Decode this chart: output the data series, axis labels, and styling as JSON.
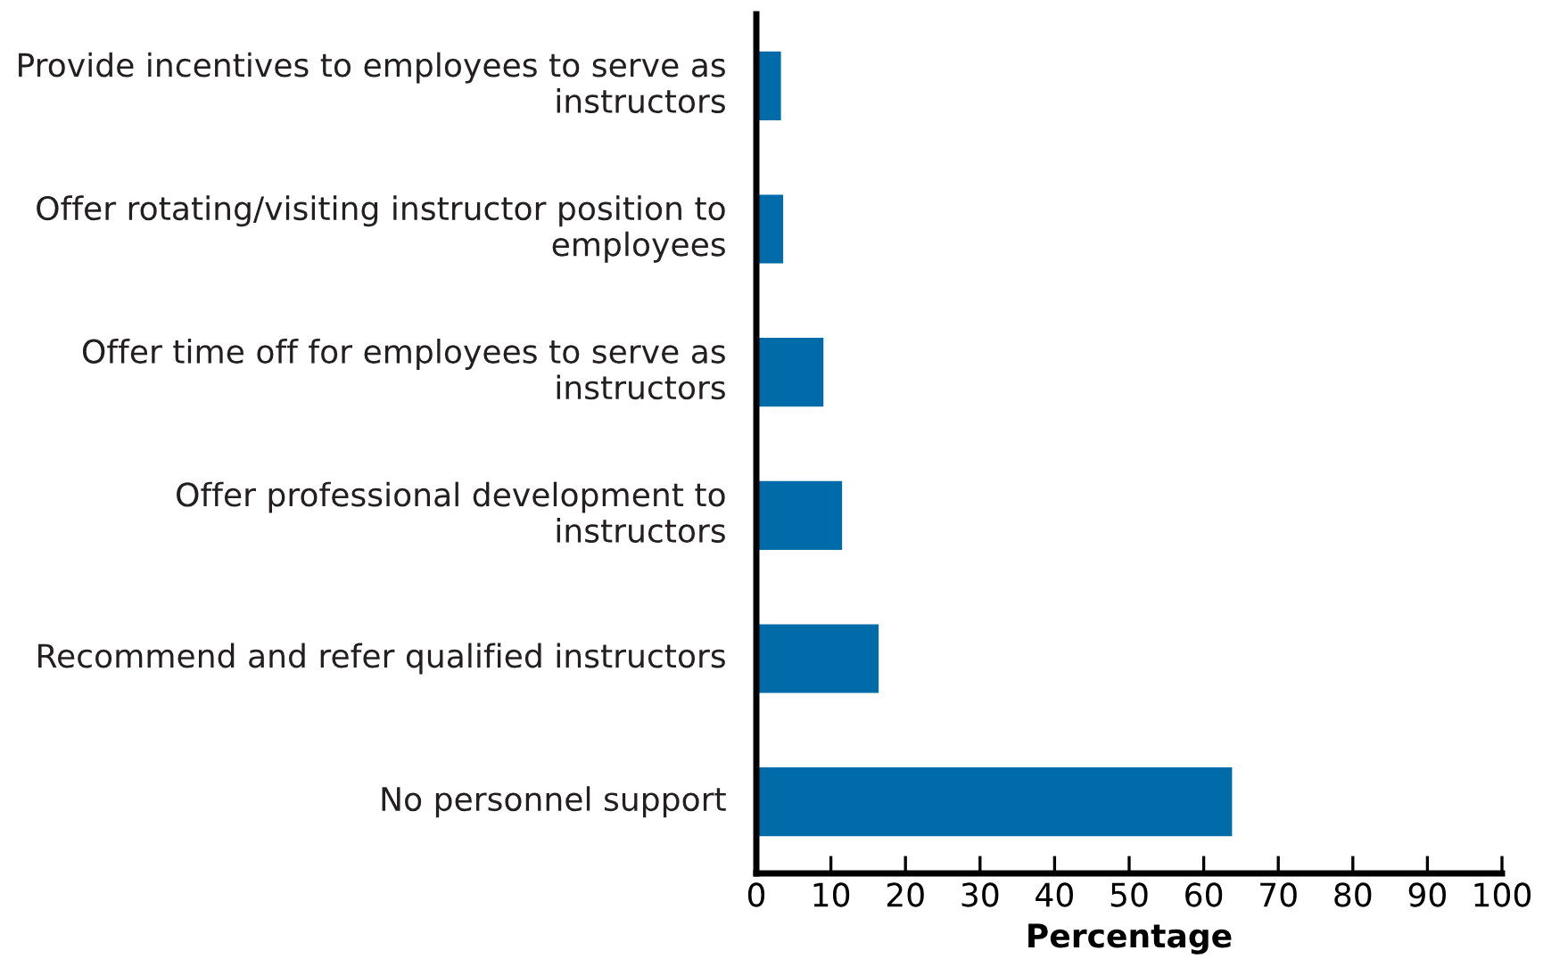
{
  "chart_data": {
    "type": "bar",
    "orientation": "horizontal",
    "xlabel": "Percentage",
    "categories": [
      "Provide incentives to employees to serve as instructors",
      "Offer rotating/visiting instructor position to employees",
      "Offer time off for employees to serve as instructors",
      "Offer professional development to instructors",
      "Recommend and refer qualified instructors",
      "No personnel support"
    ],
    "values": [
      3.3,
      3.6,
      9.0,
      11.5,
      16.4,
      63.8
    ],
    "color": "#006ba9",
    "xlim": [
      0,
      100
    ],
    "xticks": [
      0,
      10,
      20,
      30,
      40,
      50,
      60,
      70,
      80,
      90,
      100
    ],
    "grid": false,
    "legend": false
  }
}
